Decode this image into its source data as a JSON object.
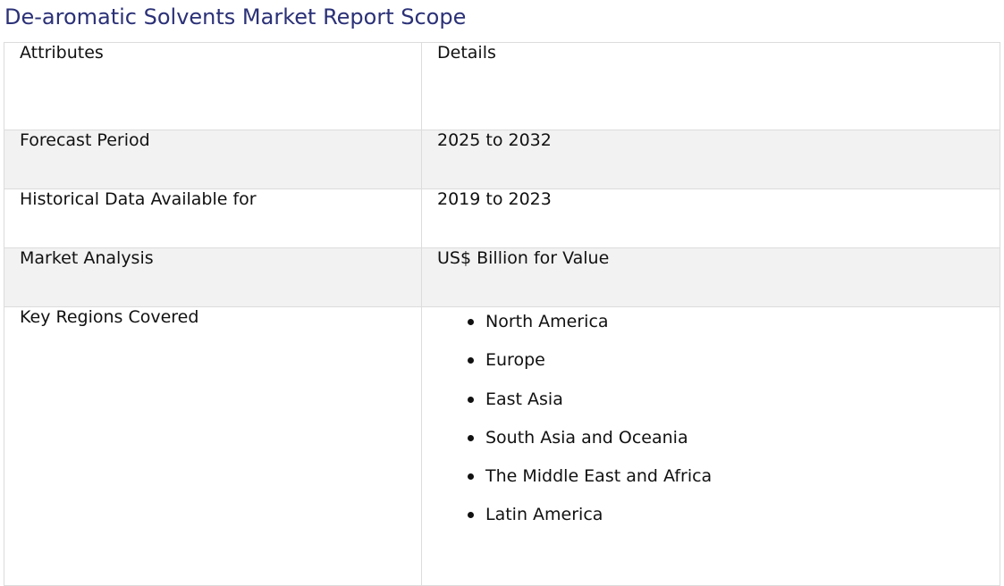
{
  "title": "De-aromatic Solvents Market Report Scope",
  "table": {
    "headers": [
      "Attributes",
      "Details"
    ],
    "rows": [
      {
        "attribute": "Forecast Period",
        "detail": "2025 to 2032"
      },
      {
        "attribute": "Historical Data Available for",
        "detail": "2019 to 2023"
      },
      {
        "attribute": "Market Analysis",
        "detail": "US$ Billion for Value"
      }
    ],
    "regions": {
      "attribute": "Key Regions Covered",
      "items": [
        "North America",
        "Europe",
        "East Asia",
        "South Asia and Oceania",
        "The Middle East and Africa",
        "Latin America"
      ]
    }
  }
}
